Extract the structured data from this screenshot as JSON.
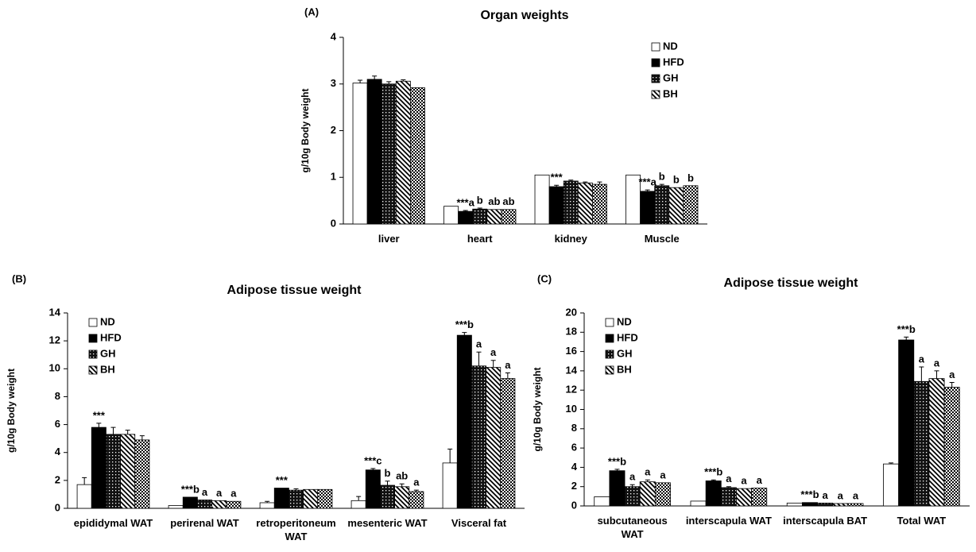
{
  "chart_data": [
    {
      "type": "bar",
      "panel": "(A)",
      "title": "Organ weights",
      "ylabel": "g/10g Body weight",
      "categories": [
        "liver",
        "heart",
        "kidney",
        "Muscle"
      ],
      "ylim": [
        0,
        4
      ],
      "yticks": [
        0,
        1,
        2,
        3,
        4
      ],
      "legend": "upper right",
      "series": [
        {
          "name": "ND",
          "color": "#ffffff",
          "values": [
            3.02,
            0.38,
            1.05,
            1.05
          ],
          "errors": [
            0.06,
            null,
            null,
            null
          ],
          "annotations": [
            null,
            null,
            null,
            null
          ]
        },
        {
          "name": "HFD",
          "color": "#000000",
          "values": [
            3.1,
            0.27,
            0.8,
            0.7
          ],
          "errors": [
            0.07,
            0.02,
            0.03,
            0.03
          ],
          "annotations": [
            null,
            "***a",
            "***",
            "***a"
          ]
        },
        {
          "name": "GH",
          "color": "#000000",
          "pattern": "dots",
          "values": [
            3.0,
            0.32,
            0.92,
            0.82
          ],
          "errors": [
            0.05,
            0.02,
            0.02,
            0.03
          ],
          "annotations": [
            null,
            "b",
            null,
            "b"
          ]
        },
        {
          "name": "BH",
          "color": "#000000",
          "pattern": "diagonal",
          "values": [
            3.06,
            0.31,
            0.88,
            0.78
          ],
          "errors": [
            0.03,
            null,
            0.02,
            null
          ],
          "annotations": [
            null,
            "ab",
            null,
            "b"
          ]
        },
        {
          "name": null,
          "color": "#000000",
          "pattern": "checker",
          "values": [
            2.92,
            0.31,
            0.85,
            0.82
          ],
          "errors": [
            null,
            null,
            0.05,
            null
          ],
          "annotations": [
            null,
            "ab",
            null,
            "b"
          ]
        }
      ]
    },
    {
      "type": "bar",
      "panel": "(B)",
      "title": "Adipose tissue weight",
      "ylabel": "g/10g Body weight",
      "categories": [
        "epididymal WAT",
        "perirenal WAT",
        "retroperitoneum WAT",
        "mesenteric WAT",
        "Visceral fat"
      ],
      "ylim": [
        0,
        14
      ],
      "yticks": [
        0,
        2,
        4,
        6,
        8,
        10,
        12,
        14
      ],
      "legend": "upper left",
      "series": [
        {
          "name": "ND",
          "color": "#ffffff",
          "values": [
            1.7,
            0.2,
            0.4,
            0.55,
            3.25
          ],
          "errors": [
            0.5,
            null,
            0.1,
            0.3,
            1.0
          ],
          "annotations": [
            null,
            null,
            null,
            null,
            null
          ]
        },
        {
          "name": "HFD",
          "color": "#000000",
          "values": [
            5.8,
            0.8,
            1.45,
            2.75,
            12.4
          ],
          "errors": [
            0.3,
            null,
            null,
            0.1,
            0.2
          ],
          "annotations": [
            "***",
            "***b",
            "***",
            "***c",
            "***b"
          ]
        },
        {
          "name": "GH",
          "color": "#000000",
          "pattern": "dots",
          "values": [
            5.3,
            0.6,
            1.3,
            1.65,
            10.2
          ],
          "errors": [
            0.5,
            null,
            0.1,
            0.3,
            1.0
          ],
          "annotations": [
            null,
            "a",
            null,
            "b",
            "a"
          ]
        },
        {
          "name": "BH",
          "color": "#000000",
          "pattern": "diagonal",
          "values": [
            5.3,
            0.55,
            1.35,
            1.55,
            10.1
          ],
          "errors": [
            0.3,
            null,
            null,
            0.2,
            0.5
          ],
          "annotations": [
            null,
            "a",
            null,
            "ab",
            "a"
          ]
        },
        {
          "name": null,
          "color": "#000000",
          "pattern": "checker",
          "values": [
            4.9,
            0.5,
            1.35,
            1.2,
            9.3
          ],
          "errors": [
            0.3,
            null,
            null,
            0.1,
            0.4
          ],
          "annotations": [
            null,
            "a",
            null,
            "a",
            "a"
          ]
        }
      ]
    },
    {
      "type": "bar",
      "panel": "(C)",
      "title": "Adipose tissue weight",
      "ylabel": "g/10g Body weight",
      "categories": [
        "subcutaneous WAT",
        "interscapula WAT",
        "interscapula BAT",
        "Total WAT"
      ],
      "ylim": [
        0,
        20
      ],
      "yticks": [
        0,
        2,
        4,
        6,
        8,
        10,
        12,
        14,
        16,
        18,
        20
      ],
      "legend": "upper left",
      "series": [
        {
          "name": "ND",
          "color": "#ffffff",
          "values": [
            0.95,
            0.5,
            0.3,
            4.35
          ],
          "errors": [
            null,
            null,
            null,
            0.1
          ],
          "annotations": [
            null,
            null,
            null,
            null
          ]
        },
        {
          "name": "HFD",
          "color": "#000000",
          "values": [
            3.65,
            2.6,
            0.35,
            17.2
          ],
          "errors": [
            0.15,
            0.1,
            null,
            0.3
          ],
          "annotations": [
            "***b",
            "***b",
            "***b",
            "***b"
          ]
        },
        {
          "name": "GH",
          "color": "#000000",
          "pattern": "dots",
          "values": [
            2.0,
            1.9,
            0.3,
            12.9
          ],
          "errors": [
            0.2,
            0.1,
            null,
            1.5
          ],
          "annotations": [
            "a",
            "a",
            "a",
            "a"
          ]
        },
        {
          "name": "BH",
          "color": "#000000",
          "pattern": "diagonal",
          "values": [
            2.5,
            1.8,
            0.25,
            13.2
          ],
          "errors": [
            0.2,
            null,
            null,
            0.8
          ],
          "annotations": [
            "a",
            "a",
            "a",
            "a"
          ]
        },
        {
          "name": null,
          "color": "#000000",
          "pattern": "checker",
          "values": [
            2.4,
            1.85,
            0.25,
            12.3
          ],
          "errors": [
            null,
            null,
            null,
            0.5
          ],
          "annotations": [
            "a",
            "a",
            "a",
            "a"
          ]
        }
      ]
    }
  ]
}
